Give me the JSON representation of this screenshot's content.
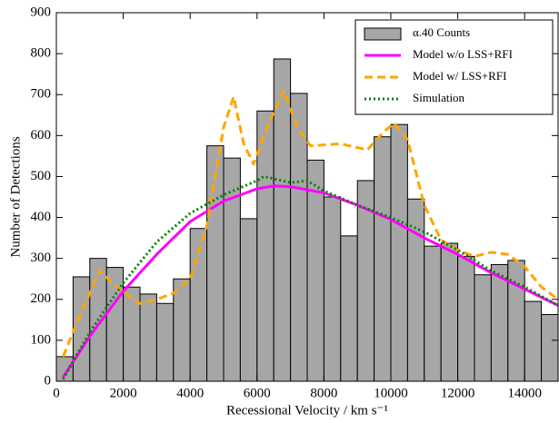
{
  "chart_data": {
    "type": "histogram",
    "xlabel": "Recessional Velocity / km s⁻¹",
    "ylabel": "Number of Detections",
    "bins": [
      0,
      500,
      1000,
      1500,
      2000,
      2500,
      3000,
      3500,
      4000,
      4500,
      5000,
      5500,
      6000,
      6500,
      7000,
      7500,
      8000,
      8500,
      9000,
      9500,
      10000,
      10500,
      11000,
      11500,
      12000,
      12500,
      13000,
      13500,
      14000,
      14500,
      15000
    ],
    "values": [
      60,
      255,
      300,
      278,
      230,
      213,
      190,
      250,
      373,
      575,
      545,
      397,
      660,
      787,
      703,
      540,
      450,
      355,
      490,
      597,
      627,
      445,
      330,
      337,
      305,
      260,
      285,
      295,
      195,
      163
    ],
    "name": "α.40 Counts",
    "color": "#a6a6a6",
    "series": [
      {
        "name": "Model w/o LSS+RFI",
        "color": "#ff00ff",
        "dash": "solid",
        "x": [
          200,
          1000,
          2000,
          3000,
          4000,
          5000,
          6000,
          6500,
          7000,
          8000,
          9000,
          10000,
          11000,
          12000,
          13000,
          14000,
          15000
        ],
        "values": [
          10,
          110,
          220,
          310,
          390,
          440,
          470,
          477,
          475,
          460,
          430,
          395,
          350,
          310,
          265,
          225,
          185
        ]
      },
      {
        "name": "Model w/ LSS+RFI",
        "color": "#ffa500",
        "dash": "dashed",
        "x": [
          200,
          700,
          1300,
          1800,
          2500,
          3000,
          3500,
          4000,
          4500,
          5000,
          5300,
          5600,
          5900,
          6300,
          6800,
          7200,
          7600,
          8500,
          9300,
          9800,
          10100,
          10500,
          11000,
          11500,
          12000,
          12500,
          13000,
          13500,
          14000,
          14500,
          15000
        ],
        "values": [
          60,
          160,
          270,
          230,
          190,
          200,
          215,
          250,
          380,
          620,
          695,
          580,
          530,
          620,
          710,
          620,
          575,
          580,
          565,
          610,
          630,
          590,
          430,
          345,
          320,
          305,
          315,
          310,
          280,
          230,
          200
        ]
      },
      {
        "name": "Simulation",
        "color": "#008000",
        "dash": "dotted",
        "x": [
          200,
          1000,
          2000,
          3000,
          4000,
          5000,
          6000,
          6200,
          7000,
          7500,
          8000,
          9000,
          10000,
          11000,
          12000,
          13000,
          14000,
          15000
        ],
        "values": [
          5,
          120,
          240,
          340,
          410,
          455,
          490,
          500,
          485,
          490,
          465,
          430,
          400,
          365,
          320,
          270,
          230,
          185
        ]
      }
    ],
    "xlim": [
      0,
      15000
    ],
    "ylim": [
      0,
      900
    ],
    "xticks": [
      0,
      2000,
      4000,
      6000,
      8000,
      10000,
      12000,
      14000
    ],
    "yticks": [
      0,
      100,
      200,
      300,
      400,
      500,
      600,
      700,
      800,
      900
    ],
    "legend": "upper right"
  }
}
